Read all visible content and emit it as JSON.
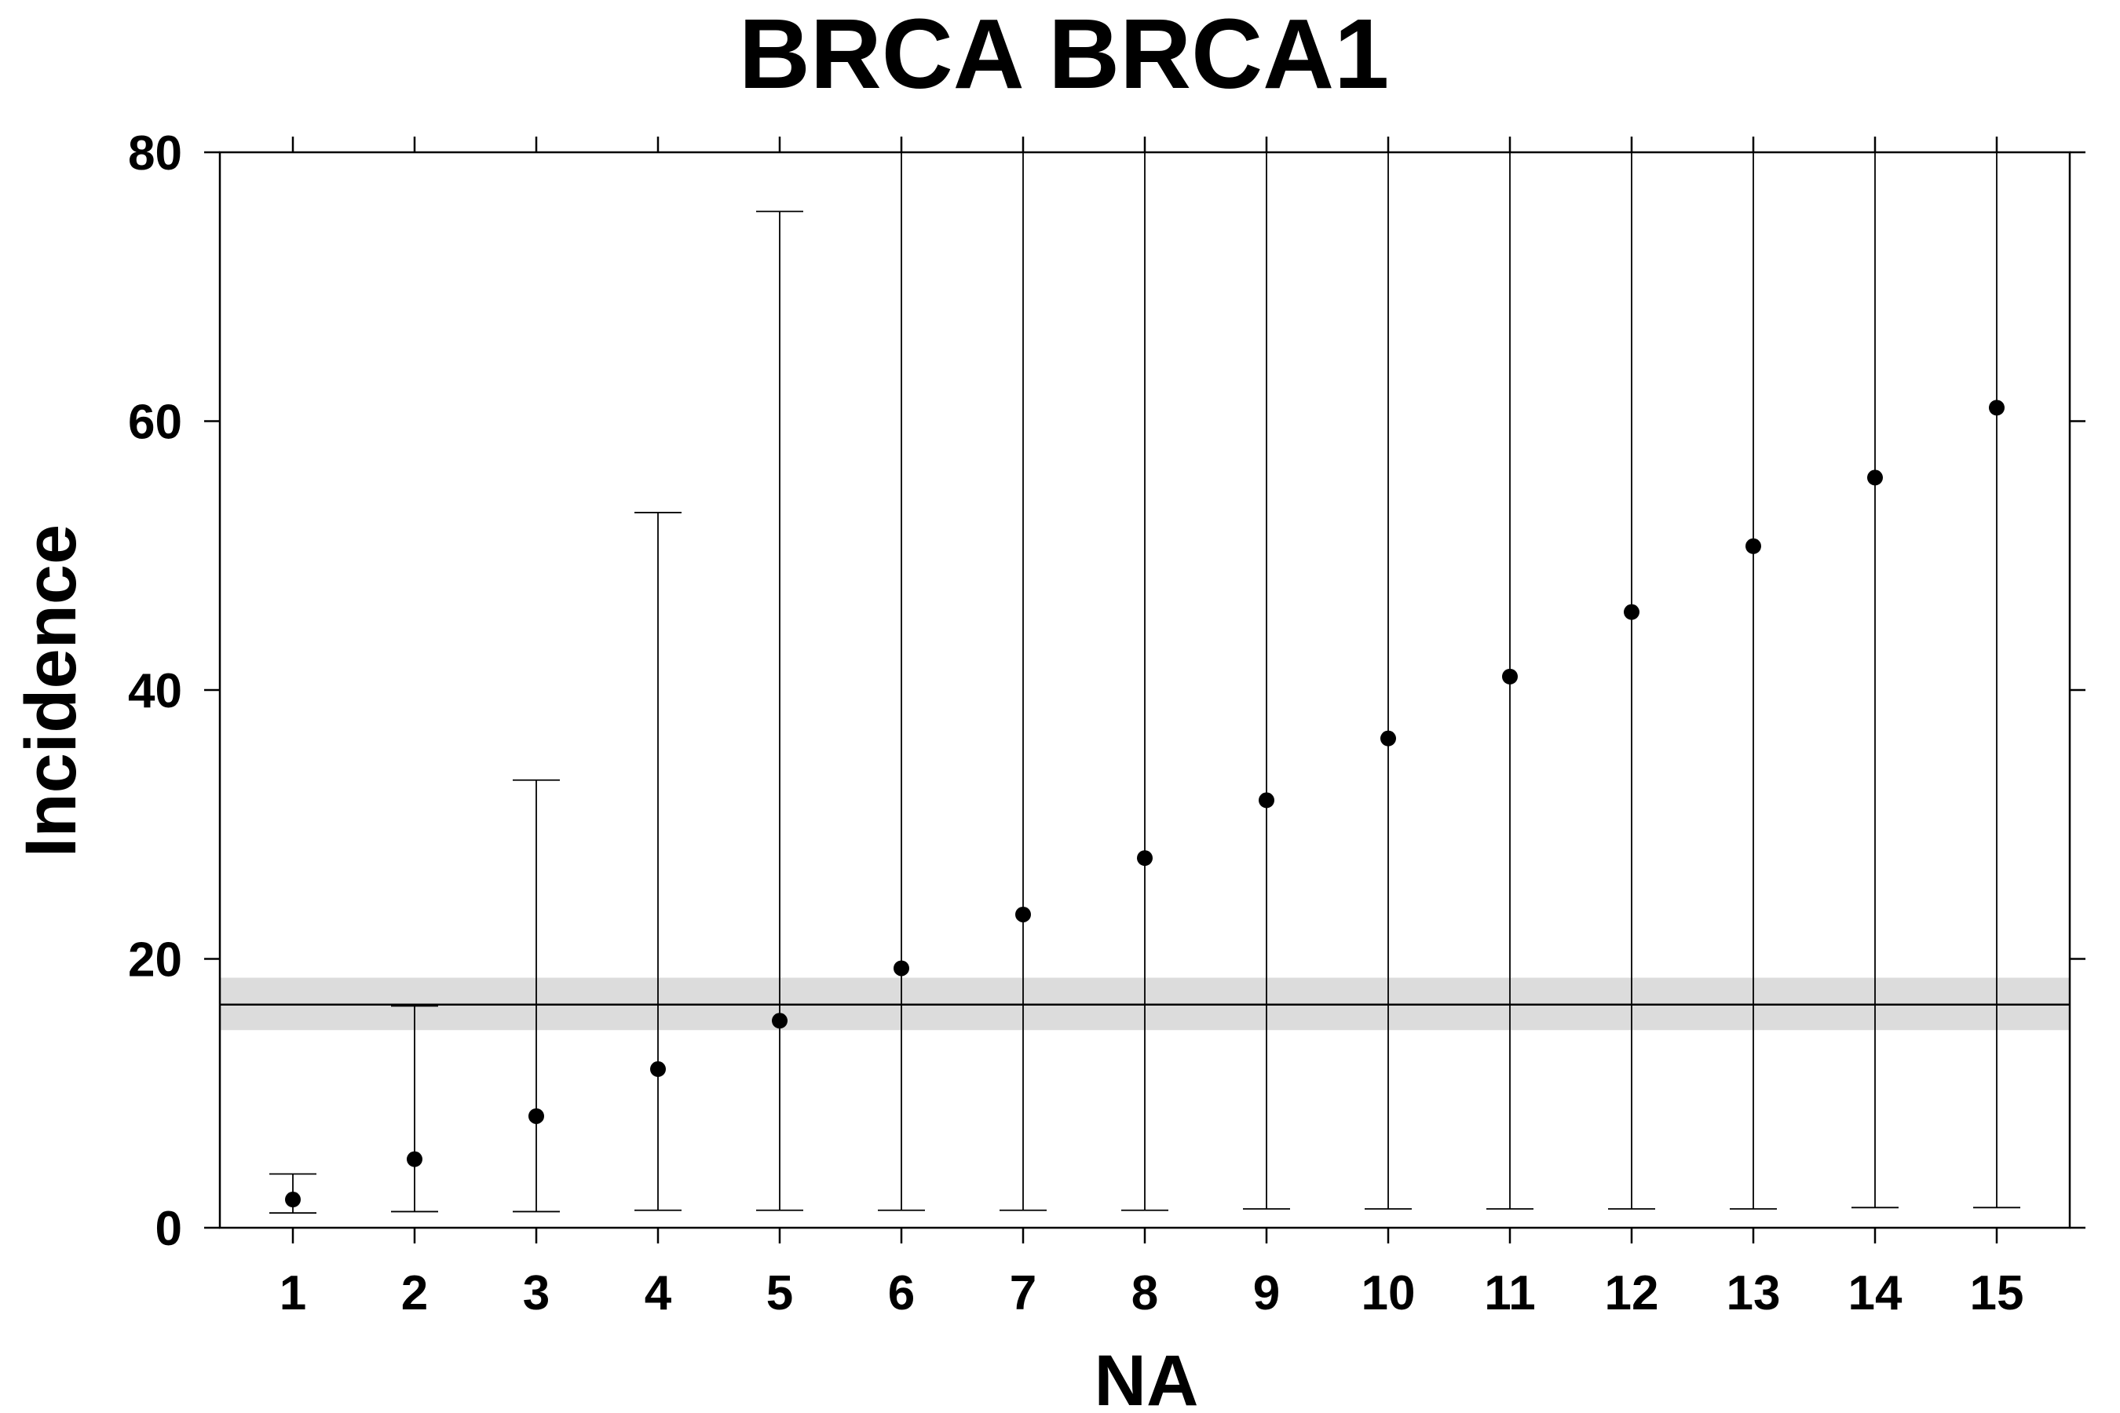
{
  "chart_data": {
    "type": "scatter",
    "title": "BRCA BRCA1",
    "xlabel": "NA",
    "ylabel": "Incidence",
    "ylim": [
      0,
      80
    ],
    "xlim": [
      0.4,
      15.6
    ],
    "x_ticks": [
      1,
      2,
      3,
      4,
      5,
      6,
      7,
      8,
      9,
      10,
      11,
      12,
      13,
      14,
      15
    ],
    "y_ticks": [
      0,
      20,
      40,
      60,
      80
    ],
    "grid": false,
    "legend": "none",
    "series": [
      {
        "x": [
          1,
          2,
          3,
          4,
          5,
          6,
          7,
          8,
          9,
          10,
          11,
          12,
          13,
          14,
          15
        ],
        "y": [
          2.1,
          5.1,
          8.3,
          11.8,
          15.4,
          19.3,
          23.3,
          27.5,
          31.8,
          36.4,
          41.0,
          45.8,
          50.7,
          55.8,
          61.0
        ],
        "lower": [
          1.1,
          1.2,
          1.2,
          1.3,
          1.3,
          1.3,
          1.3,
          1.3,
          1.4,
          1.4,
          1.4,
          1.4,
          1.4,
          1.5,
          1.5
        ],
        "upper": [
          4.0,
          16.5,
          33.3,
          53.2,
          75.6,
          80,
          80,
          80,
          80,
          80,
          80,
          80,
          80,
          80,
          80
        ]
      }
    ],
    "reference_line": {
      "y": 16.6,
      "band": [
        14.7,
        18.6
      ]
    },
    "colors": {
      "points": "#000000",
      "band": "#dcdcdc",
      "line": "#000000"
    }
  }
}
